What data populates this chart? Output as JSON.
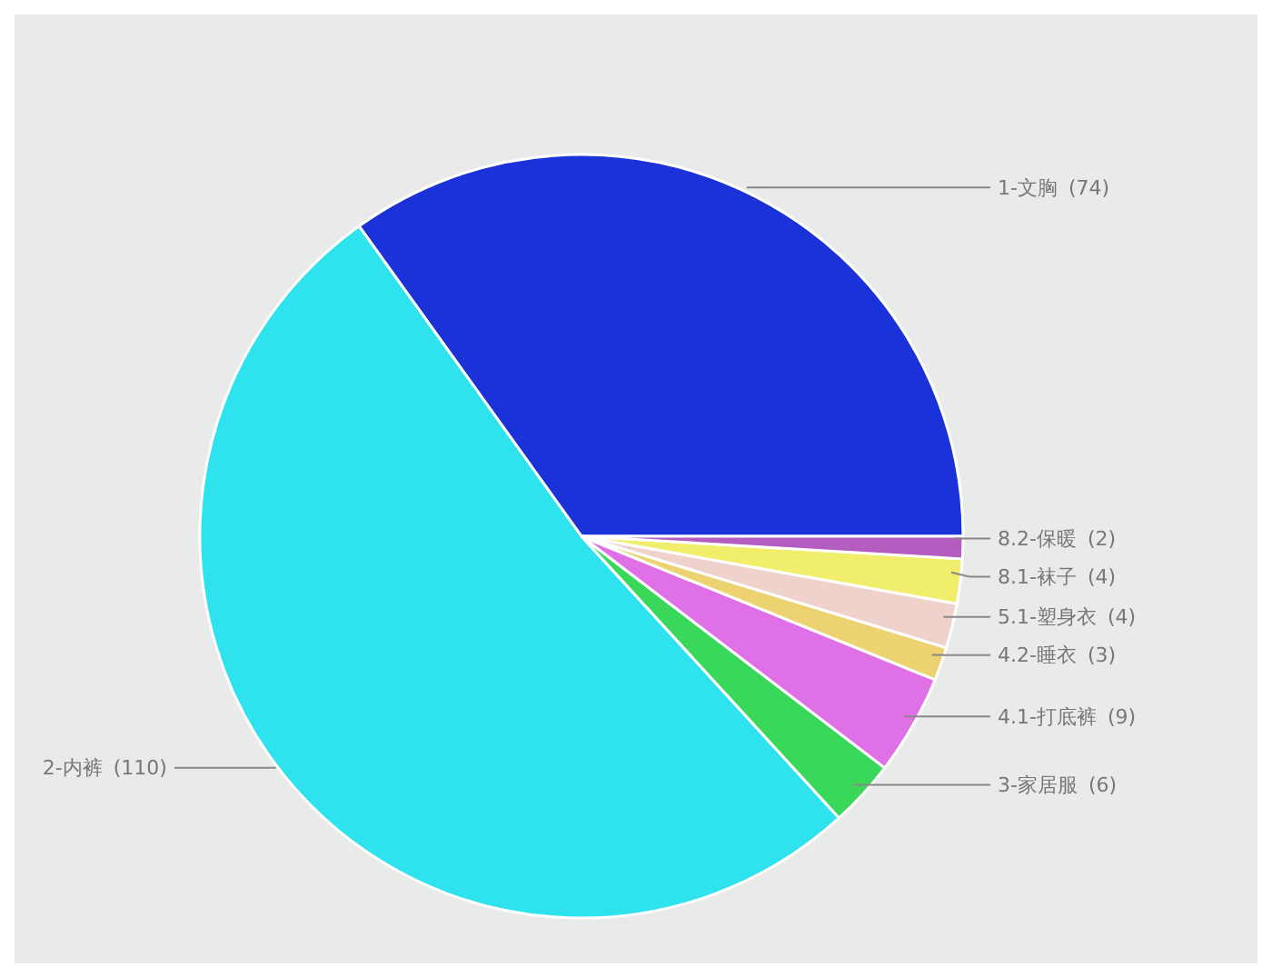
{
  "chart_data": {
    "type": "pie",
    "categories": [
      "1-文胸",
      "2-内裤",
      "3-家居服",
      "4.1-打底裤",
      "4.2-睡衣",
      "5.1-塑身衣",
      "8.1-袜子",
      "8.2-保暖"
    ],
    "values": [
      74,
      110,
      6,
      9,
      3,
      4,
      4,
      2
    ],
    "value_labels": [
      "(74)",
      "(110)",
      "(6)",
      "(9)",
      "(3)",
      "(4)",
      "(4)",
      "(2)"
    ],
    "colors": [
      "#1a32d8",
      "#2ee3ee",
      "#3ad85a",
      "#e070e6",
      "#ecd270",
      "#f0d2cc",
      "#f0ee6a",
      "#b45cc0"
    ]
  }
}
